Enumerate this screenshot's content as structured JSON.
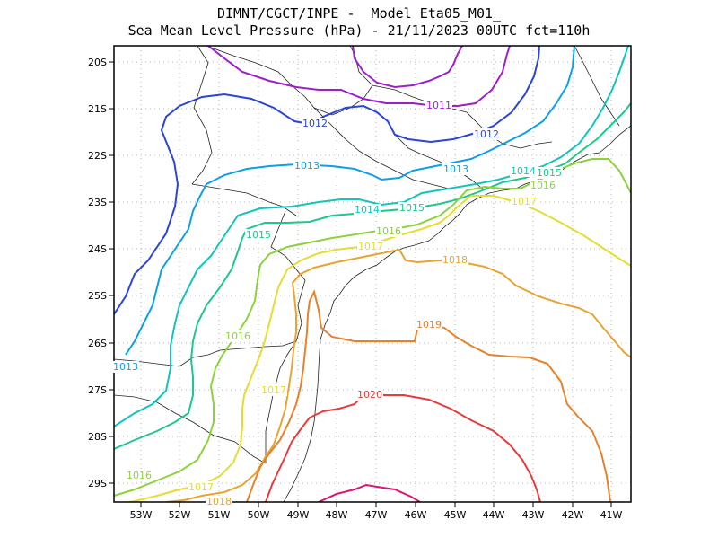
{
  "title": {
    "line1": "DIMNT/CGCT/INPE -  Model Eta05_M01_",
    "line2": "Sea Mean Level Pressure (hPa) - 21/11/2023 00UTC fct=110h"
  },
  "lon_ticks": [
    "53W",
    "52W",
    "51W",
    "50W",
    "49W",
    "48W",
    "47W",
    "46W",
    "45W",
    "44W",
    "43W",
    "42W",
    "41W"
  ],
  "lat_ticks": [
    "20S",
    "21S",
    "22S",
    "23S",
    "24S",
    "25S",
    "26S",
    "27S",
    "28S",
    "29S"
  ],
  "contours": [
    {
      "value": "1011",
      "color": "#9e1fc8"
    },
    {
      "value": "1012",
      "color": "#2a45d8"
    },
    {
      "value": "1013",
      "color": "#0ea0e6"
    },
    {
      "value": "1014",
      "color": "#14c4bc"
    },
    {
      "value": "1015",
      "color": "#1ec88a"
    },
    {
      "value": "1016",
      "color": "#8cd23c"
    },
    {
      "value": "1017",
      "color": "#e6dc32"
    },
    {
      "value": "1018",
      "color": "#e6a532"
    },
    {
      "value": "1019",
      "color": "#e6822d"
    },
    {
      "value": "1020",
      "color": "#e63c3c"
    },
    {
      "value": "1021",
      "color": "#dc1478"
    }
  ],
  "contour_labels": [
    {
      "text": "1011",
      "color": "#9e1fc8"
    },
    {
      "text": "1012",
      "color": "#2a45d8"
    },
    {
      "text": "1012",
      "color": "#2a45d8"
    },
    {
      "text": "1013",
      "color": "#0ea0e6"
    },
    {
      "text": "1013",
      "color": "#0ea0e6"
    },
    {
      "text": "1013",
      "color": "#0ea0e6"
    },
    {
      "text": "1014",
      "color": "#14c4bc"
    },
    {
      "text": "1014",
      "color": "#14c4bc"
    },
    {
      "text": "1015",
      "color": "#1ec88a"
    },
    {
      "text": "1015",
      "color": "#1ec88a"
    },
    {
      "text": "1015",
      "color": "#1ec88a"
    },
    {
      "text": "1016",
      "color": "#8cd23c"
    },
    {
      "text": "1016",
      "color": "#8cd23c"
    },
    {
      "text": "1016",
      "color": "#8cd23c"
    },
    {
      "text": "1016",
      "color": "#8cd23c"
    },
    {
      "text": "1017",
      "color": "#e6dc32"
    },
    {
      "text": "1017",
      "color": "#e6dc32"
    },
    {
      "text": "1017",
      "color": "#e6dc32"
    },
    {
      "text": "1017",
      "color": "#e6dc32"
    },
    {
      "text": "1018",
      "color": "#e6a532"
    },
    {
      "text": "1018",
      "color": "#e6a532"
    },
    {
      "text": "1019",
      "color": "#e6822d"
    },
    {
      "text": "1020",
      "color": "#e63c3c"
    }
  ]
}
